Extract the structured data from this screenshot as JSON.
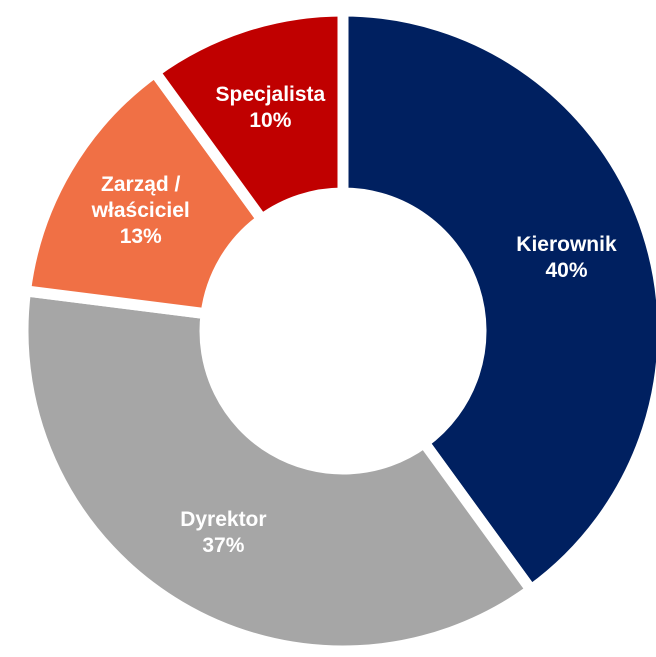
{
  "chart_data": {
    "type": "donut",
    "categories": [
      "Kierownik",
      "Dyrektor",
      "Zarząd / właściciel",
      "Specjalista"
    ],
    "values": [
      40,
      37,
      13,
      10
    ],
    "value_labels": [
      "40%",
      "37%",
      "13%",
      "10%"
    ],
    "colors": [
      "#002060",
      "#a6a6a6",
      "#f07045",
      "#c00000"
    ]
  }
}
